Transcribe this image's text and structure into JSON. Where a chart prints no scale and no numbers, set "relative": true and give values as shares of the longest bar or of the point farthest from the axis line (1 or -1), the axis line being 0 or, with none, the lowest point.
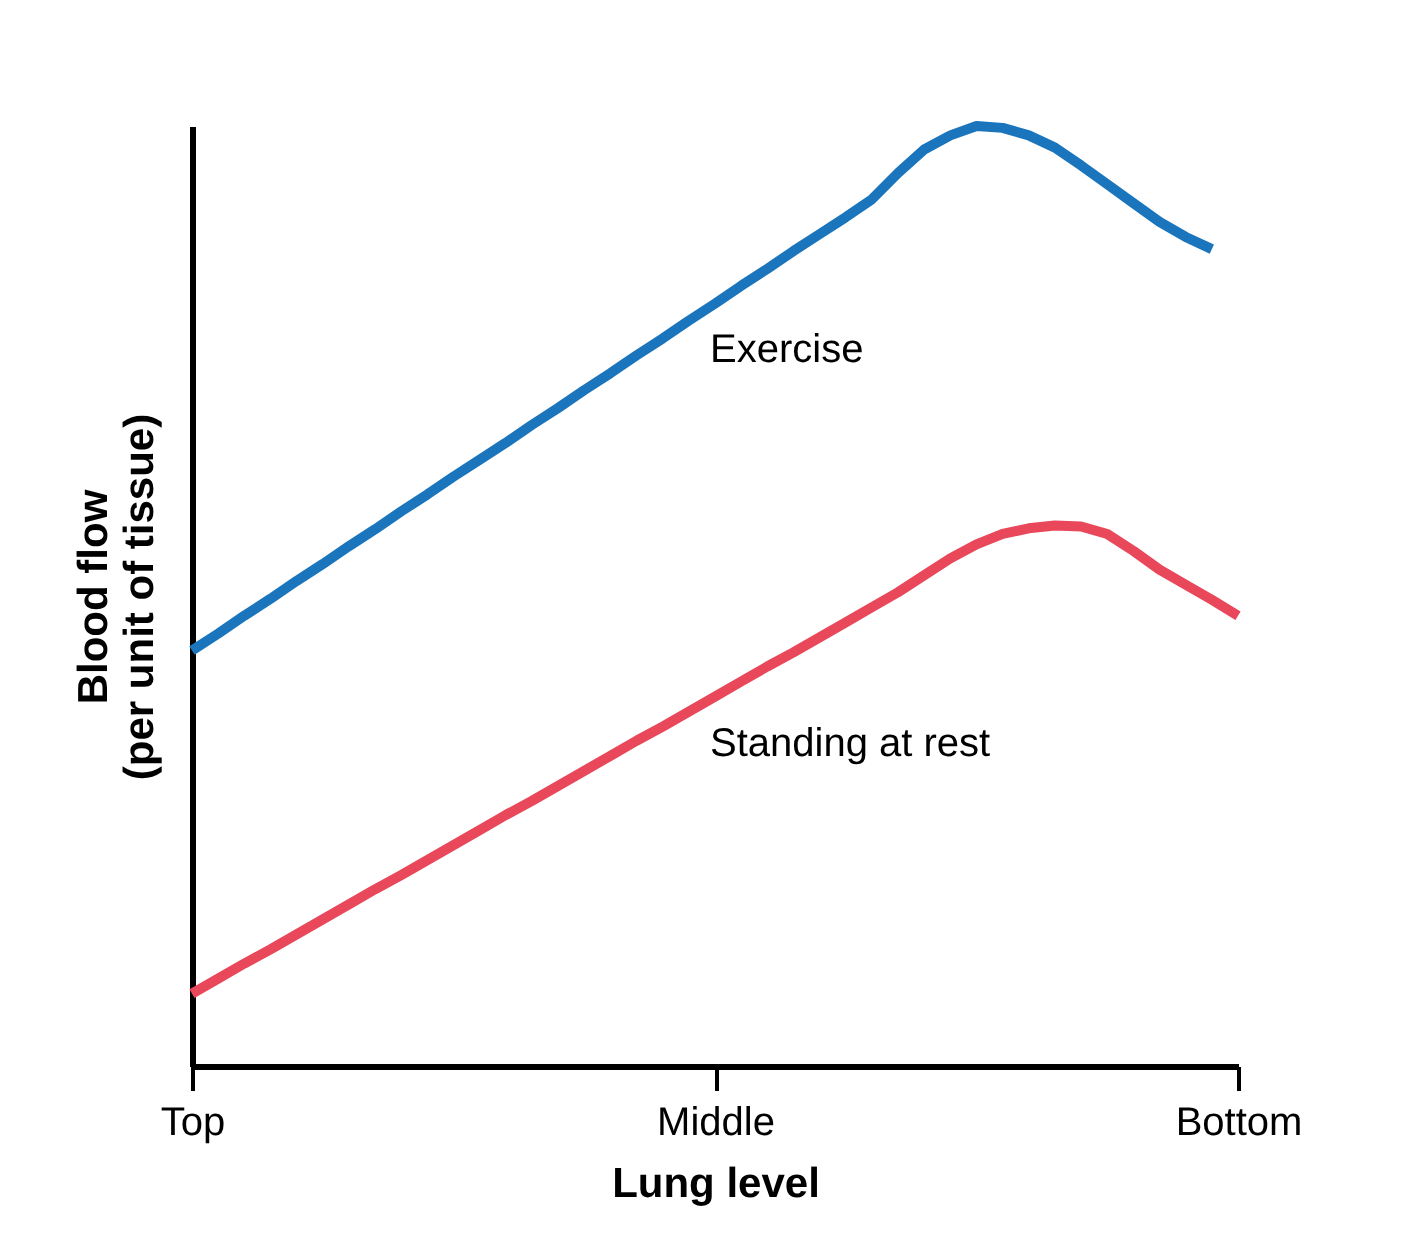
{
  "chart_data": {
    "type": "line",
    "relative": true,
    "xlabel": "Lung level",
    "ylabel": "Blood flow\n(per unit of tissue)",
    "categories": [
      "Top",
      null,
      null,
      null,
      null,
      null,
      null,
      null,
      null,
      null,
      null,
      null,
      null,
      null,
      null,
      null,
      null,
      null,
      null,
      null,
      "Middle",
      null,
      null,
      null,
      null,
      null,
      null,
      null,
      null,
      null,
      null,
      null,
      null,
      null,
      null,
      null,
      null,
      null,
      null,
      null,
      "Bottom"
    ],
    "grid": false,
    "legend": false,
    "marker": "none",
    "line_style": "solid",
    "series": [
      {
        "name": "Exercise",
        "color": "#1a75bc",
        "values": [
          0.442,
          0.46,
          0.479,
          0.497,
          0.516,
          0.534,
          0.553,
          0.571,
          0.59,
          0.608,
          0.627,
          0.645,
          0.663,
          0.682,
          0.7,
          0.719,
          0.737,
          0.756,
          0.774,
          0.793,
          0.811,
          0.83,
          0.848,
          0.867,
          0.885,
          0.903,
          0.922,
          0.95,
          0.975,
          0.99,
          1,
          0.998,
          0.99,
          0.977,
          0.958,
          0.938,
          0.918,
          0.898,
          0.882,
          0.869,
          null
        ]
      },
      {
        "name": "Standing at rest",
        "color": "#e8485a",
        "values": [
          0.077,
          0.093,
          0.109,
          0.124,
          0.14,
          0.156,
          0.172,
          0.188,
          0.203,
          0.219,
          0.235,
          0.251,
          0.267,
          0.282,
          0.298,
          0.314,
          0.33,
          0.346,
          0.361,
          0.377,
          0.393,
          0.409,
          0.425,
          0.44,
          0.456,
          0.472,
          0.488,
          0.504,
          0.522,
          0.54,
          0.555,
          0.566,
          0.572,
          0.575,
          0.574,
          0.566,
          0.548,
          0.528,
          0.512,
          0.496,
          0.479
        ]
      }
    ]
  }
}
